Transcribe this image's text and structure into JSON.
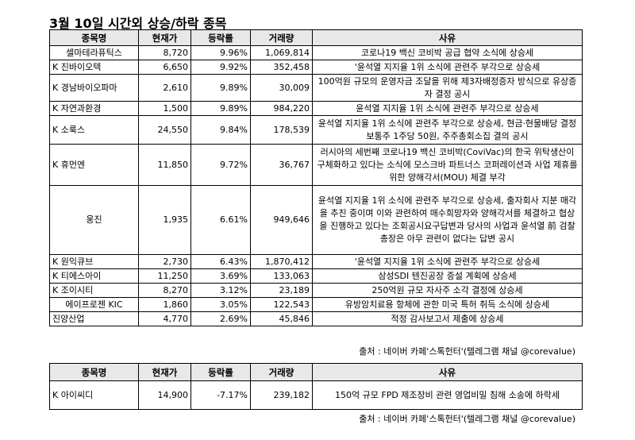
{
  "title": "3월 10일  시간외 상승/하락 종목",
  "headers": {
    "name": "종목명",
    "price": "현재가",
    "change": "등락률",
    "volume": "거래량",
    "reason": "사유"
  },
  "rise_rows": [
    {
      "name": "셀마테라퓨틱스",
      "price": "8,720",
      "change": "9.96%",
      "volume": "1,069,814",
      "reason": "코로나19 백신 코비박 공급 협약 소식에 상승세"
    },
    {
      "name": "K 진바이오텍",
      "price": "6,650",
      "change": "9.92%",
      "volume": "352,458",
      "reason": "'윤석열 지지율 1위 소식에 관련주 부각으로 상승세"
    },
    {
      "name": "K 경남바이오파마",
      "price": "2,610",
      "change": "9.89%",
      "volume": "30,009",
      "reason": "100억원 규모의 운영자금 조달을 위해 제3자배정증자 방식으로 유상증자 결정 공시"
    },
    {
      "name": "K 자연과환경",
      "price": "1,500",
      "change": "9.89%",
      "volume": "984,220",
      "reason": "윤석열 지지율 1위 소식에 관련주 부각으로 상승세"
    },
    {
      "name": "K 소룩스",
      "price": "24,550",
      "change": "9.84%",
      "volume": "178,539",
      "reason": "윤석열 지지율 1위 소식에 관련주 부각으로 상승세, 현금·현물배당 결정 보통주 1주당 50원, 주주총회소집 결의 공시"
    },
    {
      "name": "K 휴먼엔",
      "price": "11,850",
      "change": "9.72%",
      "volume": "36,767",
      "reason": "러시아의 세번째 코로나19 백신 코비박(CoviVac)의 한국 위탁생산이 구체화하고 있다는 소식에 모스크바 파트너스 코퍼레이션과 사업 제휴를 위한 양해각서(MOU) 체결 부각"
    },
    {
      "name": "웅진",
      "price": "1,935",
      "change": "6.61%",
      "volume": "949,646",
      "reason": "윤석열 지지율 1위 소식에 관련주 부각으로 상승세, 출자회사 지분 매각을 추진 중이며 이와 관련하여 매수희망자와 양해각서를 체결하고 협상을 진행하고 있다는 조회공시요구답변과 당사의 사업과 윤석열 前 검찰총장은 아무 관련이 없다는 답변 공시"
    },
    {
      "name": "K 원익큐브",
      "price": "2,730",
      "change": "6.43%",
      "volume": "1,870,412",
      "reason": "'윤석열 지지율 1위 소식에 관련주 부각으로 상승세"
    },
    {
      "name": "K 티에스아이",
      "price": "11,250",
      "change": "3.69%",
      "volume": "133,063",
      "reason": "삼성SDI 텐진공장 증설 계획에 상승세"
    },
    {
      "name": "K 조이시티",
      "price": "8,270",
      "change": "3.12%",
      "volume": "23,189",
      "reason": "250억원 규모 자사주 소각 결정에 상승세"
    },
    {
      "name": "에이프로젠 KIC",
      "price": "1,860",
      "change": "3.05%",
      "volume": "122,543",
      "reason": "유방암치료용 항체에 관한 미국 특허 취득 소식에 상승세"
    },
    {
      "name": "진양산업",
      "price": "4,770",
      "change": "2.69%",
      "volume": "45,846",
      "reason": "적정 감사보고서 제출에 상승세"
    }
  ],
  "source": "출처 : 네이버 카페'스톡헌터'(텔레그램 채널 @corevalue)",
  "fall_rows": [
    {
      "name": "K 아이씨디",
      "price": "14,900",
      "change": "-7.17%",
      "volume": "239,182",
      "reason": "150억 규모 FPD 제조장비 관련 영업비밀 침해 소송에 하락세"
    }
  ]
}
